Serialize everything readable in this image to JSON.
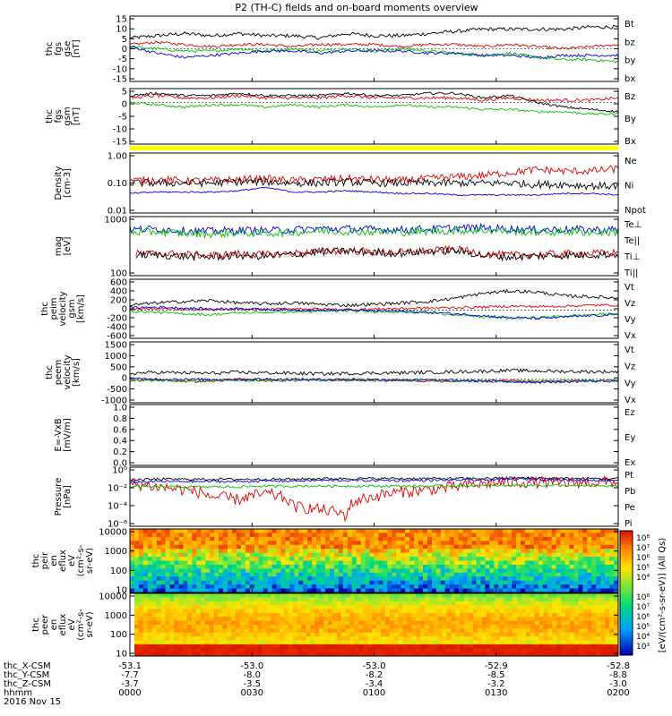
{
  "title": "P2 (TH-C) fields and on-board moments overview",
  "chart_data": [
    {
      "type": "line",
      "panel": "fgs_gse",
      "ylabel": [
        "thc",
        "fgs",
        "gse",
        "[nT]"
      ],
      "yticks": [
        "15",
        "10",
        "5",
        "0",
        "-5",
        "-10",
        "-15"
      ],
      "ylim": [
        -15,
        15
      ],
      "scale": "linear",
      "series": [
        {
          "name": "Bt",
          "color": "#000000",
          "values": [
            5,
            6,
            7,
            6,
            7,
            6,
            6,
            5,
            7,
            6,
            6,
            7,
            8,
            9,
            9,
            9,
            9,
            10,
            10
          ]
        },
        {
          "name": "bz",
          "color": "#e00000",
          "values": [
            2,
            3,
            2,
            1,
            2,
            2,
            1,
            2,
            2,
            2,
            1,
            2,
            2,
            1,
            2,
            1,
            0,
            1,
            2
          ]
        },
        {
          "name": "by",
          "color": "#00c000",
          "values": [
            1,
            0,
            -1,
            -1,
            0,
            -1,
            0,
            -1,
            0,
            -1,
            0,
            -1,
            -2,
            -3,
            -2,
            -4,
            -5,
            -5,
            -6
          ]
        },
        {
          "name": "bx",
          "color": "#0000e0",
          "values": [
            1,
            -2,
            -4,
            -3,
            -2,
            -1,
            -1,
            -2,
            -1,
            -1,
            -1,
            -2,
            -2,
            -3,
            -3,
            -4,
            -3,
            -3,
            -3
          ]
        }
      ]
    },
    {
      "type": "line",
      "panel": "fgs_gsm",
      "ylabel": [
        "thc",
        "fgs",
        "gsm",
        "[nT]"
      ],
      "yticks": [
        "5",
        "0",
        "-5",
        "-10",
        "-15"
      ],
      "ylim": [
        -18,
        6
      ],
      "scale": "linear",
      "series": [
        {
          "name": "Bz",
          "color": "#e00000",
          "values": [
            2,
            3,
            2,
            2,
            3,
            2,
            2,
            2,
            3,
            2,
            2,
            2,
            2,
            1,
            2,
            1,
            1,
            1,
            2
          ]
        },
        {
          "name": "By",
          "color": "#00c000",
          "values": [
            0,
            -1,
            -2,
            -1,
            -1,
            -2,
            -1,
            -2,
            -1,
            -2,
            -1,
            -2,
            -2,
            -3,
            -3,
            -4,
            -4,
            -5,
            -5
          ]
        },
        {
          "name": "Bx",
          "color": "#000000",
          "values": [
            3,
            4,
            3,
            3,
            4,
            3,
            3,
            3,
            4,
            3,
            3,
            4,
            4,
            2,
            3,
            0,
            -2,
            -3,
            -4
          ]
        }
      ]
    },
    {
      "type": "line",
      "panel": "density",
      "ylabel": [
        "Density",
        "[cm-3]"
      ],
      "yticks": [
        "1.00",
        "0.10",
        "0.01"
      ],
      "ylim": [
        0.01,
        1
      ],
      "scale": "log",
      "series": [
        {
          "name": "Ne",
          "color": "#e00000",
          "values": [
            0.12,
            0.13,
            0.12,
            0.12,
            0.13,
            0.14,
            0.12,
            0.13,
            0.14,
            0.13,
            0.12,
            0.14,
            0.16,
            0.18,
            0.22,
            0.28,
            0.25,
            0.25,
            0.3
          ]
        },
        {
          "name": "Ni",
          "color": "#000000",
          "values": [
            0.1,
            0.1,
            0.1,
            0.1,
            0.11,
            0.11,
            0.1,
            0.1,
            0.11,
            0.1,
            0.1,
            0.1,
            0.1,
            0.1,
            0.1,
            0.09,
            0.09,
            0.08,
            0.08
          ]
        },
        {
          "name": "Npot",
          "color": "#0000e0",
          "values": [
            0.045,
            0.05,
            0.05,
            0.05,
            0.055,
            0.07,
            0.05,
            0.05,
            0.055,
            0.05,
            0.045,
            0.045,
            0.04,
            0.04,
            0.04,
            0.04,
            0.045,
            0.045,
            0.04
          ]
        }
      ]
    },
    {
      "type": "line",
      "panel": "temperature",
      "ylabel": [
        "mag",
        "[eV]"
      ],
      "yticks": [
        "1000",
        "100"
      ],
      "ylim": [
        100,
        8000
      ],
      "scale": "log",
      "series": [
        {
          "name": "Te⊥",
          "color": "#e00000",
          "values": [
            500,
            520,
            480,
            450,
            500,
            470,
            520,
            600,
            650,
            580,
            560,
            620,
            700,
            500,
            450,
            480,
            500,
            520,
            540
          ]
        },
        {
          "name": "Te||",
          "color": "#000000",
          "values": [
            450,
            470,
            420,
            400,
            450,
            420,
            480,
            580,
            620,
            560,
            530,
            600,
            650,
            450,
            400,
            430,
            450,
            470,
            480
          ]
        },
        {
          "name": "Ti⊥",
          "color": "#0000e0",
          "values": [
            3000,
            3200,
            2800,
            2700,
            2900,
            2800,
            3000,
            3300,
            3200,
            3100,
            3000,
            3200,
            3400,
            3500,
            3200,
            3000,
            3100,
            3000,
            3000
          ]
        },
        {
          "name": "Ti||",
          "color": "#00c000",
          "values": [
            2500,
            2600,
            2300,
            2200,
            2400,
            2300,
            2500,
            2800,
            2700,
            2600,
            2500,
            2700,
            2800,
            2900,
            2700,
            2500,
            2600,
            2500,
            2500
          ]
        }
      ]
    },
    {
      "type": "line",
      "panel": "peim_velocity",
      "ylabel": [
        "thc",
        "peim",
        "velocity",
        "gsm",
        "[km/s]"
      ],
      "yticks": [
        "600",
        "400",
        "200",
        "0",
        "-200",
        "-400",
        "-600"
      ],
      "ylim": [
        -600,
        650
      ],
      "scale": "linear",
      "series": [
        {
          "name": "Vt",
          "color": "#000000",
          "values": [
            100,
            150,
            180,
            200,
            150,
            130,
            150,
            120,
            100,
            120,
            150,
            180,
            250,
            350,
            400,
            380,
            300,
            280,
            250
          ]
        },
        {
          "name": "Vz",
          "color": "#e00000",
          "values": [
            20,
            30,
            10,
            0,
            20,
            10,
            30,
            20,
            10,
            20,
            30,
            40,
            50,
            60,
            80,
            70,
            80,
            100,
            100
          ]
        },
        {
          "name": "Vy",
          "color": "#00c000",
          "values": [
            -30,
            -50,
            -80,
            -100,
            -60,
            -50,
            -40,
            -30,
            -20,
            -30,
            -40,
            -60,
            -100,
            -150,
            -180,
            -160,
            -130,
            -100,
            -80
          ]
        },
        {
          "name": "Vx",
          "color": "#0000e0",
          "values": [
            50,
            60,
            40,
            20,
            30,
            10,
            0,
            -10,
            0,
            -20,
            -30,
            -50,
            -80,
            -120,
            -160,
            -180,
            -150,
            -120,
            -100
          ]
        }
      ]
    },
    {
      "type": "line",
      "panel": "peem_velocity",
      "ylabel": [
        "thc",
        "peem",
        "velocity",
        "[km/s]"
      ],
      "yticks": [
        "1500",
        "1000",
        "500",
        "0",
        "-500",
        "-1000"
      ],
      "ylim": [
        -1000,
        1600
      ],
      "scale": "linear",
      "series": [
        {
          "name": "Vt",
          "color": "#000000",
          "values": [
            250,
            300,
            280,
            260,
            300,
            280,
            260,
            240,
            250,
            270,
            280,
            300,
            320,
            350,
            380,
            360,
            340,
            330,
            320
          ]
        },
        {
          "name": "Vz",
          "color": "#e00000",
          "values": [
            -50,
            0,
            -100,
            -80,
            0,
            -60,
            -40,
            -30,
            -20,
            -40,
            -50,
            -60,
            -80,
            -50,
            -60,
            -100,
            -80,
            -60,
            -50
          ]
        },
        {
          "name": "Vy",
          "color": "#00c000",
          "values": [
            -40,
            -60,
            -80,
            -60,
            -50,
            -40,
            -30,
            -40,
            -30,
            -20,
            -30,
            -40,
            -60,
            -80,
            -90,
            -80,
            -70,
            -60,
            -50
          ]
        },
        {
          "name": "Vx",
          "color": "#0000e0",
          "values": [
            20,
            10,
            0,
            -10,
            0,
            10,
            0,
            -10,
            0,
            -10,
            -20,
            -30,
            -50,
            -80,
            -100,
            -120,
            -100,
            -80,
            -60
          ]
        }
      ]
    },
    {
      "type": "line",
      "panel": "efield",
      "ylabel": [
        "E=-VxB",
        "[mV/m]"
      ],
      "yticks": [
        "1.0",
        "0.8",
        "0.6",
        "0.4",
        "0.2",
        "0.0"
      ],
      "ylim": [
        0,
        1
      ],
      "scale": "linear",
      "series": [
        {
          "name": "Ez",
          "color": "#e00000",
          "values": []
        },
        {
          "name": "Ey",
          "color": "#00c000",
          "values": []
        },
        {
          "name": "Ex",
          "color": "#0000e0",
          "values": []
        }
      ]
    },
    {
      "type": "line",
      "panel": "pressure",
      "ylabel": [
        "Pressure",
        "[nPa]"
      ],
      "yticks": [
        "10⁰",
        "10⁻²",
        "10⁻⁴",
        "10⁻⁶"
      ],
      "ylim": [
        1e-06,
        1
      ],
      "scale": "log",
      "series": [
        {
          "name": "Pt",
          "color": "#000000",
          "values": [
            0.05,
            0.06,
            0.06,
            0.06,
            0.06,
            0.06,
            0.06,
            0.07,
            0.07,
            0.07,
            0.07,
            0.07,
            0.07,
            0.07,
            0.08,
            0.08,
            0.07,
            0.07,
            0.07
          ]
        },
        {
          "name": "Pb",
          "color": "#e00000",
          "values": [
            0.02,
            0.01,
            0.005,
            0.001,
            0.0005,
            0.002,
            0.0001,
            5e-05,
            1e-05,
            0.001,
            0.003,
            0.005,
            0.01,
            0.02,
            0.03,
            0.03,
            0.025,
            0.03,
            0.03
          ]
        },
        {
          "name": "Pe",
          "color": "#00c000",
          "values": [
            0.01,
            0.01,
            0.01,
            0.01,
            0.01,
            0.012,
            0.012,
            0.012,
            0.012,
            0.012,
            0.012,
            0.012,
            0.013,
            0.013,
            0.014,
            0.015,
            0.013,
            0.012,
            0.012
          ]
        },
        {
          "name": "Pi",
          "color": "#0000e0",
          "values": [
            0.03,
            0.035,
            0.035,
            0.035,
            0.035,
            0.04,
            0.04,
            0.045,
            0.045,
            0.045,
            0.045,
            0.045,
            0.05,
            0.05,
            0.06,
            0.06,
            0.05,
            0.05,
            0.05
          ]
        }
      ]
    },
    {
      "type": "heatmap",
      "panel": "peir_spec",
      "ylabel": [
        "thc",
        "peir",
        "en",
        "eflux",
        "eV",
        "(cm²-s-",
        "sr-eV)"
      ],
      "yticks": [
        "10000",
        "1000",
        "100",
        "10"
      ],
      "ylim": [
        5,
        25000
      ],
      "scale": "log"
    },
    {
      "type": "heatmap",
      "panel": "peer_spec",
      "ylabel": [
        "thc",
        "peer",
        "en",
        "eflux",
        "eV",
        "(cm²-s-",
        "sr-eV)"
      ],
      "yticks": [
        "10000",
        "1000",
        "100",
        "10"
      ],
      "ylim": [
        5,
        25000
      ],
      "scale": "log"
    }
  ],
  "colorbar": {
    "ticks": [
      "10⁸",
      "10⁷",
      "10⁶",
      "10⁵",
      "10⁴"
    ],
    "ticks_lower": [
      "10⁸",
      "10⁷",
      "10⁶",
      "10⁵",
      "10⁴",
      "10³"
    ],
    "label": "[eV/(cm²-s-sr-eV)] (All Qs)"
  },
  "xaxis": {
    "rows": [
      {
        "label": "thc_X-CSM",
        "values": [
          "-53.1",
          "-53.0",
          "-53.0",
          "-52.9",
          "-52.8"
        ]
      },
      {
        "label": "thc_Y-CSM",
        "values": [
          "-7.7",
          "-8.0",
          "-8.2",
          "-8.5",
          "-8.8"
        ]
      },
      {
        "label": "thc_Z-CSM",
        "values": [
          "-3.7",
          "-3.5",
          "-3.4",
          "-3.2",
          "-3.0"
        ]
      },
      {
        "label": "hhmm",
        "values": [
          "0000",
          "0030",
          "0100",
          "0130",
          "0200"
        ]
      }
    ],
    "date": "2016 Nov 15"
  }
}
